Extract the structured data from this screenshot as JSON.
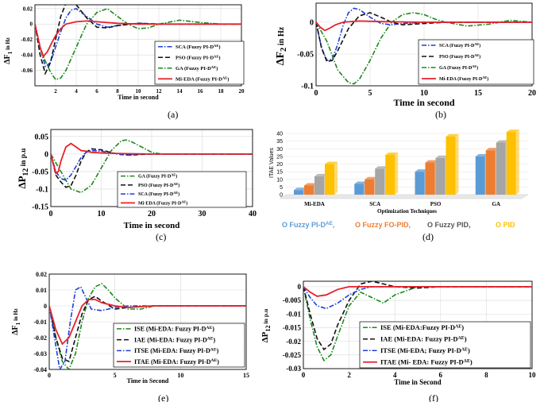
{
  "colors": {
    "sca": "#1f3fd8",
    "pso": "#111111",
    "ga": "#1a8a1a",
    "mieda": "#e8202a",
    "itae_red": "#e8202a",
    "bar_blue": "#5b9bd5",
    "bar_orange": "#ed7d31",
    "bar_gray": "#a5a5a5",
    "bar_yellow": "#ffc000",
    "axes": "#000000"
  },
  "chart_data": [
    {
      "id": "a",
      "type": "line",
      "caption": "(a)",
      "ylabel": "ΔF1 in Hz",
      "xlabel": "Time in second",
      "xlim": [
        0,
        20
      ],
      "ylim": [
        -0.08,
        0.025
      ],
      "xticks": [
        "2",
        "4",
        "6",
        "8",
        "10",
        "12",
        "14",
        "16",
        "18",
        "20"
      ],
      "yticks": [
        "0.02",
        "0",
        "-0.02",
        "-0.04",
        "-0.06"
      ],
      "series": [
        {
          "name": "SCA (Fuzzy PI-D^AE)",
          "style": "sca",
          "x": [
            0,
            0.5,
            1,
            1.5,
            2,
            2.5,
            3,
            3.5,
            4,
            5,
            6,
            7,
            8,
            10,
            12,
            15,
            20
          ],
          "y": [
            0,
            -0.03,
            -0.055,
            -0.05,
            -0.03,
            -0.01,
            0.008,
            0.018,
            0.02,
            0.01,
            0,
            -0.004,
            -0.002,
            0.001,
            0,
            0,
            0
          ]
        },
        {
          "name": "PSO (Fuzzy PI-D^AE)",
          "style": "pso",
          "x": [
            0,
            0.5,
            1,
            1.5,
            2,
            2.5,
            3,
            3.5,
            4,
            5,
            6,
            7,
            8,
            10,
            12,
            15,
            20
          ],
          "y": [
            0,
            -0.04,
            -0.064,
            -0.05,
            -0.02,
            0.01,
            0.027,
            0.03,
            0.025,
            0.008,
            -0.004,
            -0.005,
            -0.002,
            0.001,
            0,
            0,
            0
          ]
        },
        {
          "name": "GA (Fuzzy PI-D^AE)",
          "style": "ga",
          "x": [
            0,
            0.5,
            1,
            1.5,
            2,
            2.5,
            3,
            4,
            5,
            6,
            7,
            8,
            9,
            10,
            11,
            12,
            14,
            16,
            18,
            20
          ],
          "y": [
            0,
            -0.03,
            -0.048,
            -0.062,
            -0.072,
            -0.07,
            -0.06,
            -0.03,
            0,
            0.015,
            0.02,
            0.01,
            0,
            -0.006,
            -0.005,
            0,
            0.005,
            0.002,
            0,
            0
          ]
        },
        {
          "name": "Mi-EDA (Fuzzy PI-D^AE)",
          "style": "mieda",
          "x": [
            0,
            0.5,
            0.8,
            1.2,
            1.6,
            2,
            2.5,
            3,
            4,
            5,
            6,
            8,
            10,
            20
          ],
          "y": [
            0,
            -0.03,
            -0.042,
            -0.036,
            -0.025,
            -0.015,
            -0.006,
            0,
            0.003,
            0.004,
            0.003,
            0.001,
            0,
            0
          ]
        }
      ]
    },
    {
      "id": "b",
      "type": "line",
      "caption": "(b)",
      "ylabel": "ΔF2 in Hz",
      "xlabel": "Time in second",
      "xlim": [
        0,
        20
      ],
      "ylim": [
        -0.1,
        0.03
      ],
      "xticks": [
        "0",
        "5",
        "10",
        "15",
        "20"
      ],
      "yticks": [
        "0",
        "-0.05",
        "-0.1"
      ],
      "series": [
        {
          "name": "SCA (Fuzzy PI-D^AE)",
          "style": "sca",
          "x": [
            0,
            0.5,
            1,
            1.5,
            2,
            2.5,
            3,
            3.5,
            4,
            5,
            6,
            7,
            8,
            10,
            12,
            15,
            20
          ],
          "y": [
            0,
            -0.04,
            -0.06,
            -0.058,
            -0.035,
            -0.005,
            0.015,
            0.022,
            0.02,
            0.008,
            -0.002,
            -0.004,
            -0.002,
            0,
            0,
            0,
            0
          ]
        },
        {
          "name": "PSO (Fuzzy PI-D^AE)",
          "style": "pso",
          "x": [
            0,
            0.5,
            1,
            1.5,
            2,
            3,
            4,
            5,
            6,
            7,
            8,
            10,
            12,
            15,
            20
          ],
          "y": [
            0,
            -0.04,
            -0.062,
            -0.06,
            -0.045,
            -0.01,
            0.01,
            0.015,
            0.008,
            0,
            -0.004,
            -0.002,
            0,
            0,
            0
          ]
        },
        {
          "name": "GA (Fuzzy PI-D^AE)",
          "style": "ga",
          "x": [
            0,
            1,
            2,
            3,
            3.5,
            4,
            5,
            6,
            7,
            8,
            9,
            10,
            11,
            12,
            14,
            16,
            18,
            20
          ],
          "y": [
            0,
            -0.03,
            -0.075,
            -0.095,
            -0.097,
            -0.09,
            -0.06,
            -0.025,
            0,
            0.012,
            0.015,
            0.012,
            0.005,
            0,
            -0.006,
            -0.003,
            0.003,
            0
          ]
        },
        {
          "name": "Mi-EDA (Fuzzy PI-D^AE)",
          "style": "mieda",
          "x": [
            0,
            0.4,
            0.8,
            1.2,
            1.8,
            2.5,
            4,
            6,
            10,
            20
          ],
          "y": [
            0,
            -0.008,
            -0.013,
            -0.01,
            -0.004,
            0,
            0.002,
            0.001,
            0,
            0
          ]
        }
      ]
    },
    {
      "id": "c",
      "type": "line",
      "caption": "(c)",
      "ylabel": "ΔP12 in p.u",
      "xlabel": "Time in second",
      "xlim": [
        0,
        40
      ],
      "ylim": [
        -0.15,
        0.07
      ],
      "xticks": [
        "0",
        "10",
        "20",
        "30",
        "40"
      ],
      "yticks": [
        "0.05",
        "0",
        "-0.05",
        "-0.1",
        "-0.15"
      ],
      "series": [
        {
          "name": "GA (Fuzzy PI-D^AE)",
          "style": "ga",
          "x": [
            0,
            2,
            4,
            6,
            8,
            10,
            12,
            14,
            15,
            16,
            18,
            20,
            22,
            24,
            26,
            30,
            35,
            40
          ],
          "y": [
            0,
            -0.05,
            -0.1,
            -0.11,
            -0.09,
            -0.04,
            0.01,
            0.038,
            0.04,
            0.035,
            0.02,
            0.005,
            0,
            0,
            0,
            0,
            0,
            0
          ]
        },
        {
          "name": "PSO (Fuzzy PI-D^AE)",
          "style": "pso",
          "x": [
            0,
            1,
            2,
            3,
            4,
            5,
            6,
            7,
            8,
            10,
            12,
            14,
            16,
            18,
            20,
            25,
            30,
            40
          ],
          "y": [
            0,
            -0.06,
            -0.08,
            -0.095,
            -0.09,
            -0.06,
            -0.02,
            0.005,
            0.015,
            0.012,
            0.004,
            -0.002,
            -0.003,
            -0.001,
            0,
            0,
            0,
            0
          ]
        },
        {
          "name": "SCA (Fuzzy PI-D^AE)",
          "style": "sca",
          "x": [
            0,
            1,
            2,
            3,
            4,
            5,
            6,
            7,
            8,
            10,
            12,
            14,
            16,
            18,
            20,
            25,
            30,
            40
          ],
          "y": [
            0,
            -0.05,
            -0.07,
            -0.075,
            -0.06,
            -0.035,
            -0.01,
            0.005,
            0.01,
            0.008,
            0.003,
            -0.002,
            -0.002,
            0,
            0,
            0,
            0,
            0
          ]
        },
        {
          "name": "Mi-EDA (Fuzzy PI-D^AE)",
          "style": "mieda",
          "x": [
            0,
            1,
            1.5,
            2,
            3,
            4,
            5,
            6,
            7,
            8,
            10,
            12,
            15,
            20,
            40
          ],
          "y": [
            0,
            -0.055,
            -0.05,
            -0.02,
            0.02,
            0.03,
            0.02,
            0.01,
            0.008,
            0.005,
            0.003,
            0.002,
            0.001,
            0,
            0
          ]
        }
      ]
    },
    {
      "id": "d",
      "type": "bar",
      "caption": "(d)",
      "ylabel": "ITAE Values",
      "xlabel": "Optimization Techniques",
      "ylim": [
        0,
        40
      ],
      "yticks": [
        "40",
        "35",
        "30",
        "25",
        "20",
        "15",
        "10",
        "5",
        "0"
      ],
      "categories": [
        "Mi-EDA",
        "SCA",
        "PSO",
        "GA"
      ],
      "series": [
        {
          "name": "O Fuzzy PI-D^AE,",
          "style": "bar_blue",
          "values": [
            3,
            7,
            15,
            25
          ]
        },
        {
          "name": "O Fuzzy FO-PID,",
          "style": "bar_orange",
          "values": [
            6,
            10,
            21,
            29
          ]
        },
        {
          "name": "O Fuzzy PID,",
          "style": "bar_gray",
          "values": [
            12,
            17,
            24,
            34
          ]
        },
        {
          "name": "O PID",
          "style": "bar_yellow",
          "values": [
            20,
            26,
            38,
            41
          ]
        }
      ]
    },
    {
      "id": "e",
      "type": "line",
      "caption": "(e)",
      "ylabel": "ΔF1 in Hz",
      "xlabel": "Time in Second",
      "xlim": [
        0,
        15
      ],
      "ylim": [
        -0.04,
        0.02
      ],
      "xticks": [
        "0",
        "5",
        "10",
        "15"
      ],
      "yticks": [
        "0.02",
        "0.01",
        "0",
        "-0.01",
        "-0.02",
        "-0.03",
        "-0.04"
      ],
      "series": [
        {
          "name": "ISE   (Mi-EDA: Fuzzy PI-D^AE)",
          "style": "ga",
          "x": [
            0,
            0.5,
            1,
            1.5,
            2,
            2.5,
            3,
            3.5,
            4,
            4.5,
            5,
            6,
            7,
            8,
            10,
            12,
            15
          ],
          "y": [
            0,
            -0.02,
            -0.035,
            -0.04,
            -0.03,
            -0.01,
            0.005,
            0.012,
            0.014,
            0.01,
            0.005,
            -0.002,
            -0.002,
            0,
            0,
            0,
            0
          ]
        },
        {
          "name": "IAE   (Mi-EDA: Fuzzy PI-D^AE)",
          "style": "pso",
          "x": [
            0,
            0.5,
            1,
            1.5,
            2,
            2.5,
            3,
            3.5,
            4,
            5,
            6,
            8,
            10,
            15
          ],
          "y": [
            0,
            -0.02,
            -0.033,
            -0.035,
            -0.02,
            -0.005,
            0.004,
            0.006,
            0.003,
            -0.002,
            -0.001,
            0,
            0,
            0
          ]
        },
        {
          "name": "ITSE (Mi-EDA: Fuzzy PI-D^AE)",
          "style": "sca",
          "x": [
            0,
            0.4,
            0.8,
            1.2,
            1.6,
            2,
            2.4,
            2.8,
            3.2,
            4,
            5,
            6,
            8,
            10,
            15
          ],
          "y": [
            0,
            -0.02,
            -0.04,
            -0.035,
            -0.01,
            0.01,
            0.012,
            0.005,
            -0.002,
            -0.003,
            -0.001,
            0,
            0,
            0,
            0
          ]
        },
        {
          "name": "ITAE (Mi-EDA: Fuzzy PI-D^AE)",
          "style": "mieda",
          "x": [
            0,
            0.5,
            1,
            1.5,
            2,
            2.5,
            3,
            3.5,
            4,
            5,
            6,
            8,
            10,
            15
          ],
          "y": [
            0,
            -0.015,
            -0.024,
            -0.02,
            -0.01,
            0,
            0.004,
            0.004,
            0.002,
            0,
            -0.001,
            0,
            0,
            0
          ]
        }
      ]
    },
    {
      "id": "f",
      "type": "line",
      "caption": "(f)",
      "ylabel": "ΔP12 in p.u",
      "xlabel": "Time in Second",
      "xlim": [
        0,
        10
      ],
      "ylim": [
        -0.03,
        0.002
      ],
      "xticks": [
        "0",
        "2",
        "4",
        "6",
        "8",
        "10"
      ],
      "yticks": [
        "0",
        "-0.005",
        "-0.01",
        "-0.015",
        "-0.02",
        "-0.025",
        "-0.03"
      ],
      "series": [
        {
          "name": "ISE   (Mi-EDA:Fuzzy PI-D^AE)",
          "style": "ga",
          "x": [
            0,
            0.3,
            0.6,
            0.9,
            1.2,
            1.5,
            2,
            2.5,
            3,
            3.5,
            4,
            5,
            6,
            8,
            10
          ],
          "y": [
            0,
            -0.012,
            -0.022,
            -0.027,
            -0.025,
            -0.018,
            -0.007,
            -0.002,
            -0.004,
            -0.006,
            -0.003,
            0,
            0,
            0,
            0
          ]
        },
        {
          "name": "IAE   (Mi-EDA: Fuzzy PI-D^AE)",
          "style": "pso",
          "x": [
            0,
            0.3,
            0.6,
            0.9,
            1.2,
            1.5,
            2,
            2.5,
            3,
            3.5,
            4,
            5,
            6,
            8,
            10
          ],
          "y": [
            0,
            -0.01,
            -0.019,
            -0.023,
            -0.021,
            -0.014,
            -0.005,
            0.001,
            0.002,
            0.001,
            0,
            -0.0005,
            0,
            0,
            0
          ]
        },
        {
          "name": "ITSE   (Mi-EDA; Fuzzy PI-D^AE)",
          "style": "sca",
          "x": [
            0,
            0.3,
            0.6,
            1,
            1.5,
            2,
            2.5,
            3,
            4,
            5,
            6,
            8,
            10
          ],
          "y": [
            0,
            -0.004,
            -0.007,
            -0.008,
            -0.006,
            -0.003,
            -0.001,
            0,
            0,
            0,
            0,
            0,
            0
          ]
        },
        {
          "name": "ITAE   (Mi- EDA: Fuzzy PI-D^AE)",
          "style": "mieda",
          "x": [
            0,
            0.3,
            0.6,
            1,
            1.5,
            2,
            3,
            4,
            6,
            8,
            10
          ],
          "y": [
            0,
            -0.002,
            -0.0035,
            -0.003,
            -0.001,
            0,
            0,
            0,
            0,
            0,
            0
          ]
        }
      ]
    }
  ]
}
